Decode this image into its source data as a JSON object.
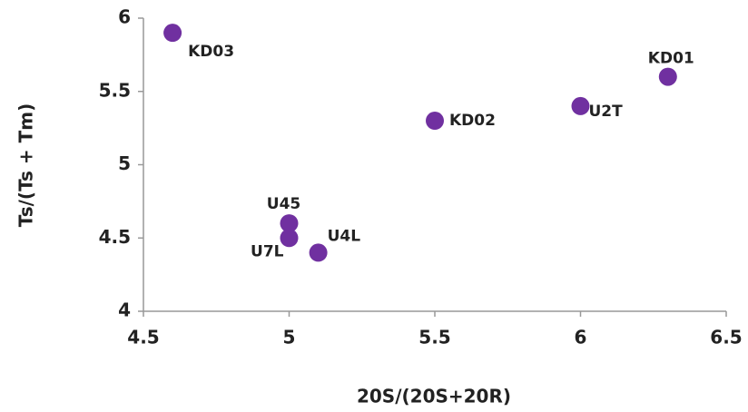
{
  "chart_data": {
    "type": "scatter",
    "x_label": "20S/(20S+20R)",
    "y_label": "Ts/(Ts + Tm)",
    "labels": [
      "KD03",
      "KD02",
      "U2T",
      "KD01",
      "U45",
      "U7L",
      "U4L"
    ],
    "x": [
      4.6,
      5.5,
      6.0,
      6.3,
      5.0,
      5.0,
      5.1
    ],
    "values": [
      5.9,
      5.3,
      5.4,
      5.6,
      4.6,
      4.5,
      4.4
    ],
    "color": "#7030a0",
    "xlim": [
      4.5,
      6.5
    ],
    "xticks": [
      4.5,
      5,
      5.5,
      6,
      6.5
    ],
    "ylim": [
      4,
      6
    ],
    "yticks": [
      4,
      4.5,
      5,
      5.5,
      6
    ],
    "grid": false
  }
}
